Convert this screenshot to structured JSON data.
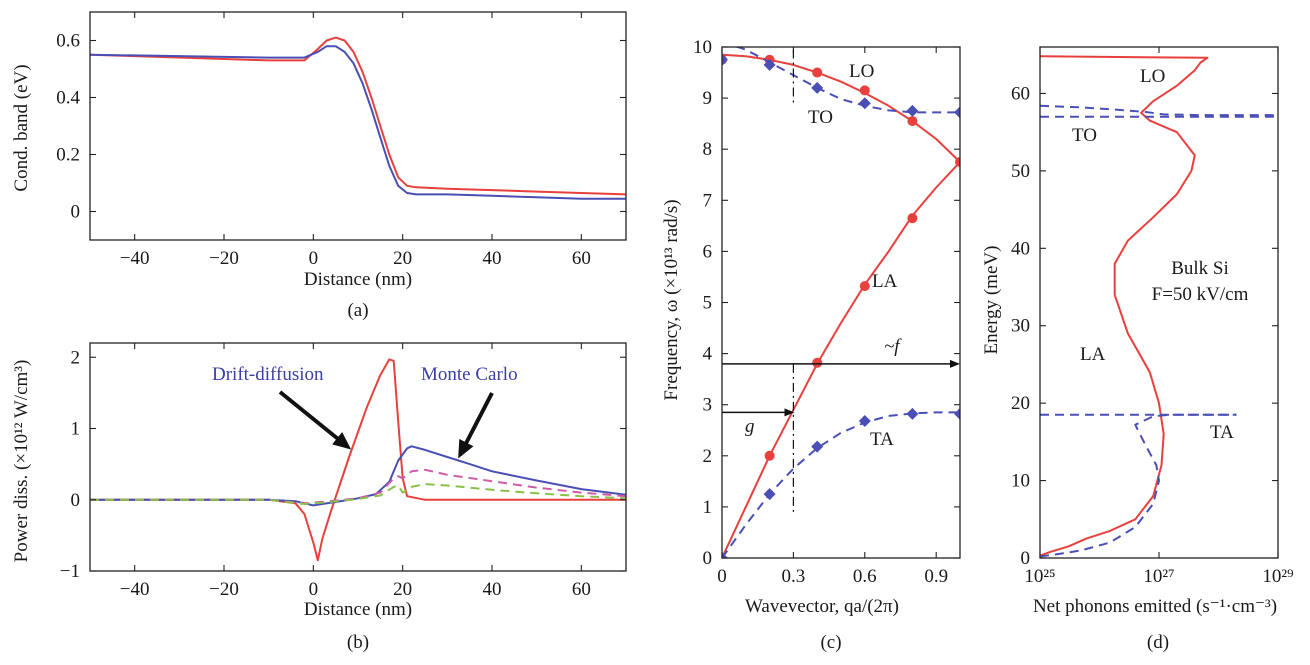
{
  "colors": {
    "red": "#e8403c",
    "blue": "#4a4fb5",
    "dark_blue": "#3b3fa8",
    "magenta": "#d05aa8",
    "green": "#88c04a",
    "black": "#111111"
  },
  "panels": {
    "a": {
      "letter": "(a)"
    },
    "b": {
      "letter": "(b)"
    },
    "c": {
      "letter": "(c)"
    },
    "d": {
      "letter": "(d)"
    }
  },
  "chart_data": [
    {
      "id": "a",
      "type": "line",
      "xlabel": "Distance (nm)",
      "ylabel": "Cond. band (eV)",
      "xlim": [
        -50,
        70
      ],
      "ylim": [
        -0.1,
        0.7
      ],
      "xticks": [
        -40,
        -20,
        0,
        20,
        40,
        60
      ],
      "yticks": [
        0,
        0.2,
        0.4,
        0.6
      ],
      "xtick_labels": [
        "−40",
        "−20",
        "0",
        "20",
        "40",
        "60"
      ],
      "ytick_labels": [
        "0",
        "0.2",
        "0.4",
        "0.6"
      ],
      "series": [
        {
          "color": "red",
          "style": "solid",
          "x": [
            -50,
            -10,
            -2,
            1,
            3,
            5,
            7,
            9,
            11,
            13,
            15,
            17,
            19,
            21,
            23,
            30,
            40,
            50,
            60,
            70
          ],
          "y": [
            0.55,
            0.53,
            0.53,
            0.57,
            0.6,
            0.61,
            0.6,
            0.56,
            0.49,
            0.4,
            0.3,
            0.2,
            0.12,
            0.09,
            0.085,
            0.08,
            0.075,
            0.07,
            0.065,
            0.06
          ]
        },
        {
          "color": "blue",
          "style": "solid",
          "x": [
            -50,
            -10,
            -2,
            1,
            3,
            5,
            7,
            9,
            11,
            13,
            15,
            17,
            19,
            21,
            23,
            30,
            40,
            50,
            60,
            70
          ],
          "y": [
            0.55,
            0.54,
            0.54,
            0.56,
            0.58,
            0.58,
            0.56,
            0.52,
            0.45,
            0.36,
            0.26,
            0.16,
            0.09,
            0.065,
            0.06,
            0.06,
            0.055,
            0.05,
            0.045,
            0.045
          ]
        }
      ]
    },
    {
      "id": "b",
      "type": "line",
      "xlabel": "Distance (nm)",
      "ylabel": "Power diss. (×10¹² W/cm³)",
      "xlim": [
        -50,
        70
      ],
      "ylim": [
        -1,
        2.2
      ],
      "xticks": [
        -40,
        -20,
        0,
        20,
        40,
        60
      ],
      "yticks": [
        -1,
        0,
        1,
        2
      ],
      "xtick_labels": [
        "−40",
        "−20",
        "0",
        "20",
        "40",
        "60"
      ],
      "ytick_labels": [
        "−1",
        "0",
        "1",
        "2"
      ],
      "annotations": {
        "drift_diffusion": "Drift-diffusion",
        "monte_carlo": "Monte Carlo"
      },
      "series": [
        {
          "name": "Drift-diffusion",
          "color": "red",
          "style": "solid",
          "x": [
            -50,
            -10,
            -4,
            -2,
            0,
            1,
            2,
            4,
            8,
            12,
            15,
            17,
            18,
            19,
            20,
            21,
            25,
            40,
            70
          ],
          "y": [
            0,
            0,
            -0.05,
            -0.2,
            -0.6,
            -0.85,
            -0.55,
            -0.15,
            0.6,
            1.3,
            1.75,
            1.97,
            1.95,
            1.1,
            0.3,
            0.05,
            0,
            0,
            0
          ]
        },
        {
          "name": "Monte Carlo",
          "color": "blue",
          "style": "solid",
          "x": [
            -50,
            -10,
            -4,
            -2,
            0,
            2,
            6,
            10,
            14,
            17,
            19,
            21,
            22,
            25,
            30,
            35,
            40,
            50,
            60,
            70
          ],
          "y": [
            0,
            0,
            -0.02,
            -0.05,
            -0.08,
            -0.06,
            -0.02,
            0.02,
            0.08,
            0.25,
            0.55,
            0.72,
            0.75,
            0.7,
            0.6,
            0.5,
            0.4,
            0.27,
            0.15,
            0.07
          ]
        },
        {
          "color": "magenta",
          "style": "dashed",
          "x": [
            -50,
            -10,
            -2,
            2,
            10,
            15,
            18,
            19,
            20,
            22,
            25,
            30,
            40,
            50,
            60,
            70
          ],
          "y": [
            0,
            0,
            -0.05,
            -0.03,
            0.02,
            0.1,
            0.3,
            0.33,
            0.3,
            0.4,
            0.42,
            0.35,
            0.26,
            0.17,
            0.1,
            0.05
          ]
        },
        {
          "color": "green",
          "style": "dashed",
          "x": [
            -50,
            -10,
            -2,
            2,
            10,
            15,
            18,
            19,
            20,
            22,
            25,
            30,
            40,
            50,
            60,
            70
          ],
          "y": [
            0,
            0,
            -0.06,
            -0.04,
            0.01,
            0.06,
            0.18,
            0.2,
            0.1,
            0.18,
            0.22,
            0.2,
            0.14,
            0.09,
            0.05,
            0.02
          ]
        }
      ]
    },
    {
      "id": "c",
      "type": "line",
      "xlabel": "Wavevector, qa/(2π)",
      "ylabel": "Frequency, ω (×10¹³ rad/s)",
      "xlim": [
        0,
        1
      ],
      "ylim": [
        0,
        10
      ],
      "xticks": [
        0,
        0.3,
        0.6,
        0.9
      ],
      "yticks": [
        0,
        1,
        2,
        3,
        4,
        5,
        6,
        7,
        8,
        9,
        10
      ],
      "xtick_labels": [
        "0",
        "0.3",
        "0.6",
        "0.9"
      ],
      "ytick_labels": [
        "0",
        "1",
        "2",
        "3",
        "4",
        "5",
        "6",
        "7",
        "8",
        "9",
        "10"
      ],
      "branch_labels": {
        "LO": "LO",
        "TO": "TO",
        "LA": "LA",
        "TA": "TA"
      },
      "arrow_labels": {
        "f": "~f",
        "g": "g"
      },
      "arrows": {
        "f_level": 3.8,
        "g_level": 2.85,
        "x_cut": 0.3
      },
      "series": [
        {
          "name": "LO",
          "color": "red",
          "style": "solid",
          "x": [
            0,
            0.1,
            0.2,
            0.3,
            0.4,
            0.5,
            0.6,
            0.7,
            0.8,
            0.9,
            1.0
          ],
          "y": [
            9.85,
            9.82,
            9.75,
            9.65,
            9.5,
            9.32,
            9.1,
            8.85,
            8.55,
            8.2,
            7.75
          ]
        },
        {
          "name": "LO points",
          "color": "red",
          "marker": "circle",
          "x": [
            0,
            0.2,
            0.4,
            0.6,
            0.8,
            1.0
          ],
          "y": [
            9.75,
            9.75,
            9.5,
            9.15,
            8.55,
            7.75
          ]
        },
        {
          "name": "TO",
          "color": "blue",
          "style": "dashed",
          "x": [
            0,
            0.1,
            0.2,
            0.3,
            0.4,
            0.5,
            0.6,
            0.7,
            0.8,
            0.9,
            1.0
          ],
          "y": [
            10.1,
            9.95,
            9.7,
            9.45,
            9.2,
            8.98,
            8.85,
            8.76,
            8.72,
            8.72,
            8.72
          ]
        },
        {
          "name": "TO points",
          "color": "blue",
          "marker": "diamond",
          "x": [
            0,
            0.2,
            0.4,
            0.6,
            0.8,
            1.0
          ],
          "y": [
            9.75,
            9.65,
            9.2,
            8.9,
            8.75,
            8.72
          ]
        },
        {
          "name": "LA",
          "color": "red",
          "style": "solid",
          "x": [
            0,
            0.1,
            0.2,
            0.3,
            0.4,
            0.5,
            0.6,
            0.7,
            0.8,
            0.9,
            1.0
          ],
          "y": [
            0,
            1.0,
            2.0,
            2.9,
            3.8,
            4.6,
            5.35,
            6.0,
            6.7,
            7.25,
            7.75
          ]
        },
        {
          "name": "LA points",
          "color": "red",
          "marker": "circle",
          "x": [
            0.2,
            0.4,
            0.6,
            0.8
          ],
          "y": [
            2.0,
            3.82,
            5.32,
            6.65
          ]
        },
        {
          "name": "TA",
          "color": "blue",
          "style": "dashed",
          "x": [
            0,
            0.1,
            0.2,
            0.3,
            0.4,
            0.5,
            0.6,
            0.7,
            0.8,
            0.9,
            1.0
          ],
          "y": [
            0,
            0.65,
            1.25,
            1.75,
            2.15,
            2.45,
            2.65,
            2.78,
            2.83,
            2.85,
            2.85
          ]
        },
        {
          "name": "TA points",
          "color": "blue",
          "marker": "diamond",
          "x": [
            0,
            0.2,
            0.4,
            0.6,
            0.8,
            1.0
          ],
          "y": [
            0,
            1.25,
            2.18,
            2.68,
            2.82,
            2.82
          ]
        }
      ]
    },
    {
      "id": "d",
      "type": "line",
      "xlabel": "Net phonons emitted (s⁻¹·cm⁻³)",
      "ylabel": "Energy (meV)",
      "x_scale": "log",
      "xlim": [
        1e+25,
        1e+29
      ],
      "ylim": [
        0,
        66
      ],
      "xticks": [
        1e+25,
        1e+27,
        1e+29
      ],
      "xtick_labels": [
        "10²⁵",
        "10²⁷",
        "10²⁹"
      ],
      "yticks": [
        0,
        10,
        20,
        30,
        40,
        50,
        60
      ],
      "ytick_labels": [
        "0",
        "10",
        "20",
        "30",
        "40",
        "50",
        "60"
      ],
      "branch_labels": {
        "LO": "LO",
        "TO": "TO",
        "LA": "LA",
        "TA": "TA"
      },
      "annotation": {
        "line1": "Bulk Si",
        "line2": "F=50 kV/cm"
      },
      "series": [
        {
          "name": "LA",
          "color": "red",
          "style": "solid",
          "x": [
            1e+25,
            1.5e+25,
            3e+25,
            6e+25,
            1.5e+26,
            4e+26,
            8e+26,
            1.1e+27,
            1.2e+27,
            1e+27,
            7e+26,
            3e+26,
            1.8e+26,
            1.8e+26,
            3e+26,
            8e+26,
            2e+27,
            3.5e+27,
            4e+27,
            2e+27,
            7e+26,
            5e+26,
            8e+26,
            2e+27,
            4e+27,
            5e+27,
            6.5e+27,
            1e+25
          ],
          "y": [
            0.3,
            0.8,
            1.5,
            2.5,
            3.5,
            5,
            8,
            12,
            16,
            20,
            24,
            29,
            34,
            38,
            41,
            44,
            47,
            50,
            52,
            55,
            56.5,
            57.5,
            59,
            61,
            63,
            64,
            64.6,
            64.8
          ]
        },
        {
          "name": "TA",
          "color": "blue",
          "style": "dashed",
          "x": [
            1e+25,
            2e+25,
            5e+25,
            1.5e+26,
            4e+26,
            8e+26,
            1e+27,
            9e+26,
            6e+26,
            4e+26,
            8e+26,
            1.5e+27,
            5e+27,
            1e+28,
            2e+28
          ],
          "y": [
            0.2,
            0.5,
            1,
            2,
            4,
            7,
            10,
            12,
            14.5,
            17.2,
            18.3,
            18.5,
            18.5,
            18.5,
            18.5
          ]
        },
        {
          "name": "TA level",
          "color": "blue",
          "style": "dashed",
          "x": [
            1e+25,
            2e+28
          ],
          "y": [
            18.5,
            18.5
          ]
        },
        {
          "name": "TO",
          "color": "blue",
          "style": "dashed",
          "x": [
            1e+25,
            5e+25,
            2e+26,
            6e+26,
            1.2e+27,
            5e+27,
            2e+28,
            1e+29
          ],
          "y": [
            58.4,
            58.2,
            57.9,
            57.6,
            57.3,
            57.2,
            57.2,
            57.2
          ]
        },
        {
          "name": "TO level",
          "color": "blue",
          "style": "dashed",
          "x": [
            1e+25,
            1e+29
          ],
          "y": [
            57.0,
            57.0
          ]
        }
      ]
    }
  ]
}
